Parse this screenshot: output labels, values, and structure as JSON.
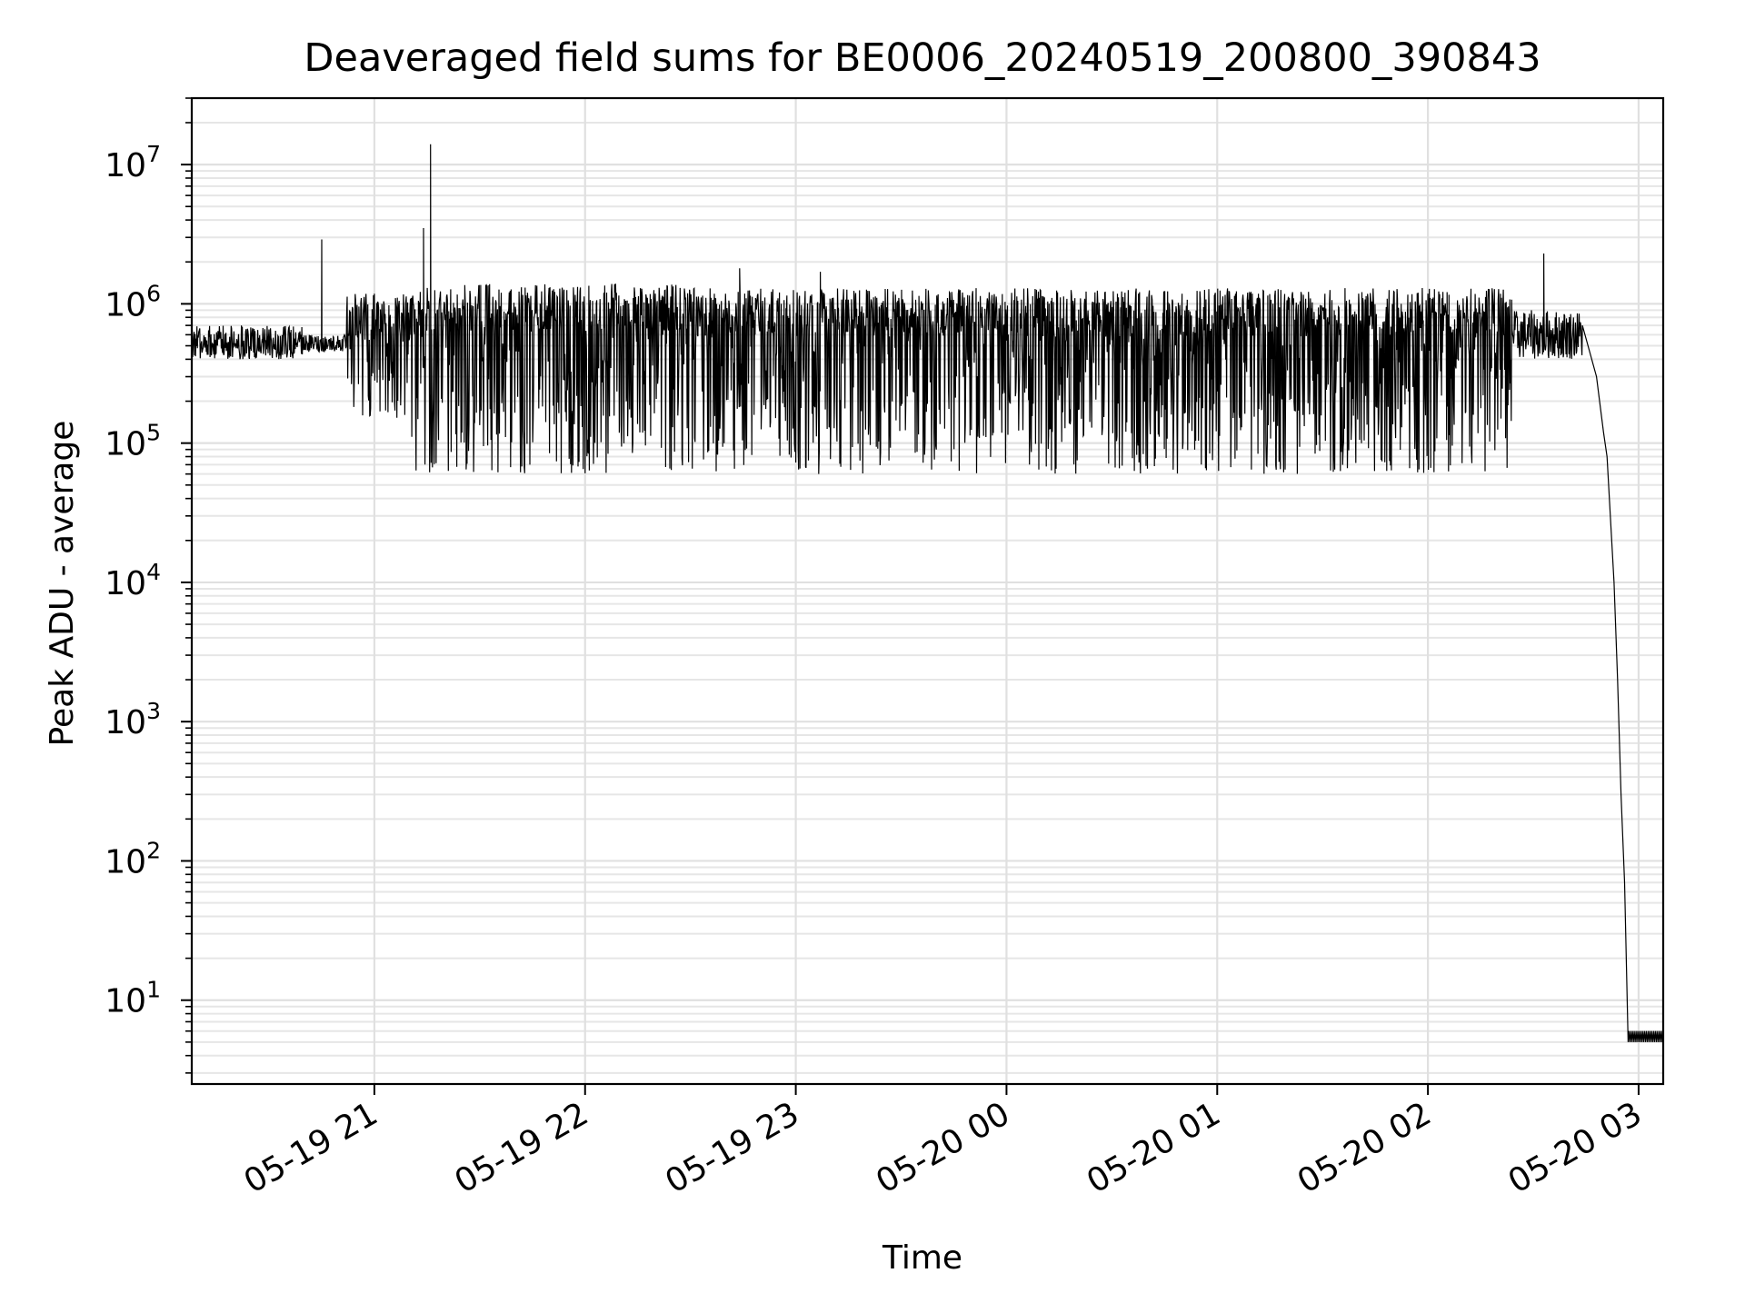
{
  "chart_data": {
    "type": "line",
    "title": "Deaveraged field sums for BE0006_20240519_200800_390843",
    "xlabel": "Time",
    "ylabel": "Peak ADU - average",
    "yscale": "log",
    "ylim": [
      2.5,
      30000000
    ],
    "xlim": [
      "2024-05-19 20:08",
      "2024-05-20 03:07"
    ],
    "grid": "major and minor",
    "x_ticks": [
      {
        "t": "2024-05-19 21:00",
        "label": "05-19 21"
      },
      {
        "t": "2024-05-19 22:00",
        "label": "05-19 22"
      },
      {
        "t": "2024-05-19 23:00",
        "label": "05-19 23"
      },
      {
        "t": "2024-05-20 00:00",
        "label": "05-20 00"
      },
      {
        "t": "2024-05-20 01:00",
        "label": "05-20 01"
      },
      {
        "t": "2024-05-20 02:00",
        "label": "05-20 02"
      },
      {
        "t": "2024-05-20 03:00",
        "label": "05-20 03"
      }
    ],
    "y_ticks": [
      {
        "value": 10,
        "base": "10",
        "exp": "1"
      },
      {
        "value": 100,
        "base": "10",
        "exp": "2"
      },
      {
        "value": 1000,
        "base": "10",
        "exp": "3"
      },
      {
        "value": 10000,
        "base": "10",
        "exp": "4"
      },
      {
        "value": 100000,
        "base": "10",
        "exp": "5"
      },
      {
        "value": 1000000,
        "base": "10",
        "exp": "6"
      },
      {
        "value": 10000000,
        "base": "10",
        "exp": "7"
      }
    ],
    "series": [
      {
        "line_color": "#000000",
        "segments": [
          {
            "from": "2024-05-19 20:08",
            "to": "2024-05-19 20:40",
            "low": 400000,
            "high": 700000,
            "spiky": false
          },
          {
            "from": "2024-05-19 20:40",
            "to": "2024-05-19 20:52",
            "low": 450000,
            "high": 600000,
            "spiky": false
          },
          {
            "from": "2024-05-19 20:52",
            "to": "2024-05-19 21:10",
            "low": 150000,
            "high": 1200000,
            "spiky": true
          },
          {
            "from": "2024-05-19 21:10",
            "to": "2024-05-19 22:28",
            "low": 60000,
            "high": 1400000,
            "spiky": true
          },
          {
            "from": "2024-05-19 22:28",
            "to": "2024-05-20 02:24",
            "low": 60000,
            "high": 1300000,
            "spiky": true
          },
          {
            "from": "2024-05-20 02:24",
            "to": "2024-05-20 02:44",
            "low": 400000,
            "high": 900000,
            "spiky": false
          }
        ],
        "peaks": [
          {
            "t": "2024-05-19 20:45",
            "y": 2900000
          },
          {
            "t": "2024-05-19 21:14",
            "y": 3500000
          },
          {
            "t": "2024-05-19 21:16",
            "y": 14000000
          },
          {
            "t": "2024-05-19 22:44",
            "y": 1800000
          },
          {
            "t": "2024-05-19 23:07",
            "y": 1700000
          },
          {
            "t": "2024-05-20 02:33",
            "y": 2300000
          }
        ],
        "decay": [
          {
            "t": "2024-05-20 02:44",
            "y": 700000
          },
          {
            "t": "2024-05-20 02:48",
            "y": 300000
          },
          {
            "t": "2024-05-20 02:50",
            "y": 120000
          },
          {
            "t": "2024-05-20 02:51",
            "y": 80000
          },
          {
            "t": "2024-05-20 02:53",
            "y": 10000
          },
          {
            "t": "2024-05-20 02:54",
            "y": 2000
          },
          {
            "t": "2024-05-20 02:55",
            "y": 300
          },
          {
            "t": "2024-05-20 02:56",
            "y": 70
          },
          {
            "t": "2024-05-20 02:57",
            "y": 5
          }
        ],
        "floor": {
          "from": "2024-05-20 02:57",
          "to": "2024-05-20 03:07",
          "low": 5,
          "high": 6
        }
      }
    ]
  }
}
